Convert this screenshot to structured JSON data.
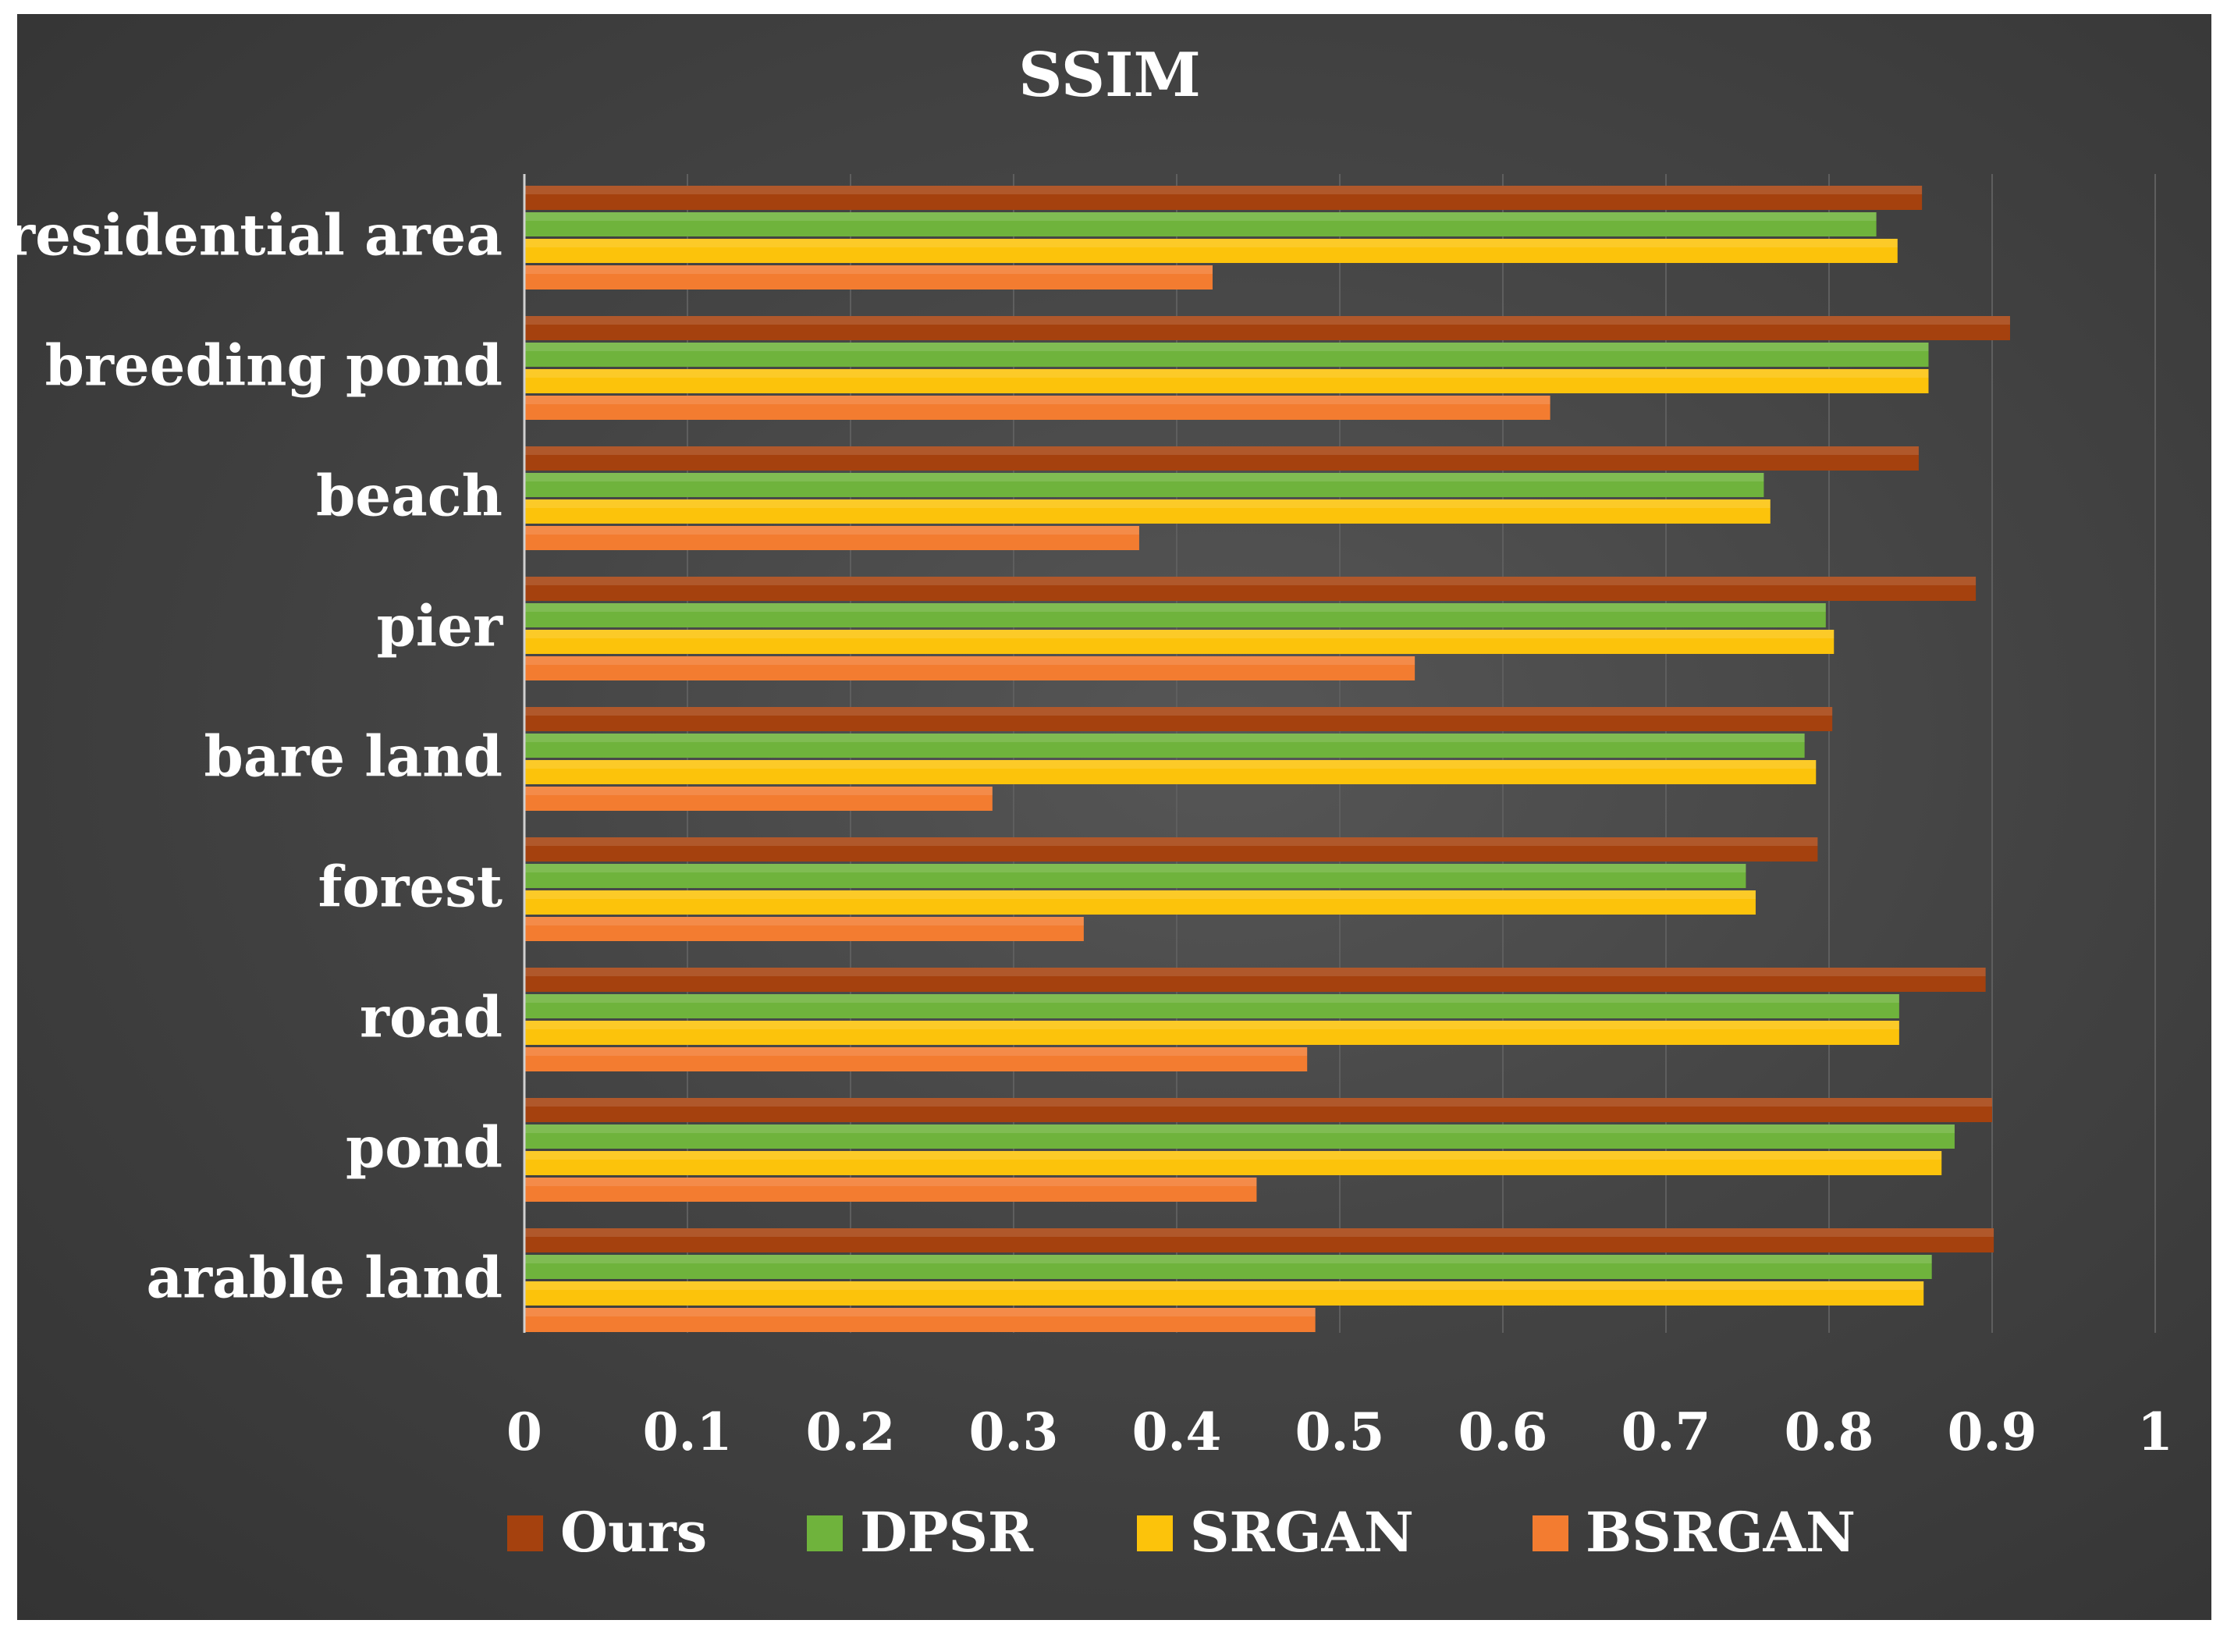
{
  "chart_data": {
    "type": "bar",
    "orientation": "horizontal",
    "title": "SSIM",
    "xlabel": "",
    "ylabel": "",
    "xlim": [
      0,
      1
    ],
    "xticks": [
      "0",
      "0.1",
      "0.2",
      "0.3",
      "0.4",
      "0.5",
      "0.6",
      "0.7",
      "0.8",
      "0.9",
      "1"
    ],
    "grid": true,
    "legend_position": "bottom",
    "categories": [
      "residential area",
      "breeding pond",
      "beach",
      "pier",
      "bare land",
      "forest",
      "road",
      "pond",
      "arable land"
    ],
    "series": [
      {
        "name": "Ours",
        "color": "#a5410e",
        "values": [
          0.857,
          0.911,
          0.855,
          0.89,
          0.802,
          0.793,
          0.896,
          0.9,
          0.901
        ]
      },
      {
        "name": "DPSR",
        "color": "#6fb33c",
        "values": [
          0.829,
          0.861,
          0.76,
          0.798,
          0.785,
          0.749,
          0.843,
          0.877,
          0.863
        ]
      },
      {
        "name": "SRGAN",
        "color": "#fcc30b",
        "values": [
          0.842,
          0.861,
          0.764,
          0.803,
          0.792,
          0.755,
          0.843,
          0.869,
          0.858
        ]
      },
      {
        "name": "BSRGAN",
        "color": "#f37c30",
        "values": [
          0.422,
          0.629,
          0.377,
          0.546,
          0.287,
          0.343,
          0.48,
          0.449,
          0.485
        ]
      }
    ]
  }
}
